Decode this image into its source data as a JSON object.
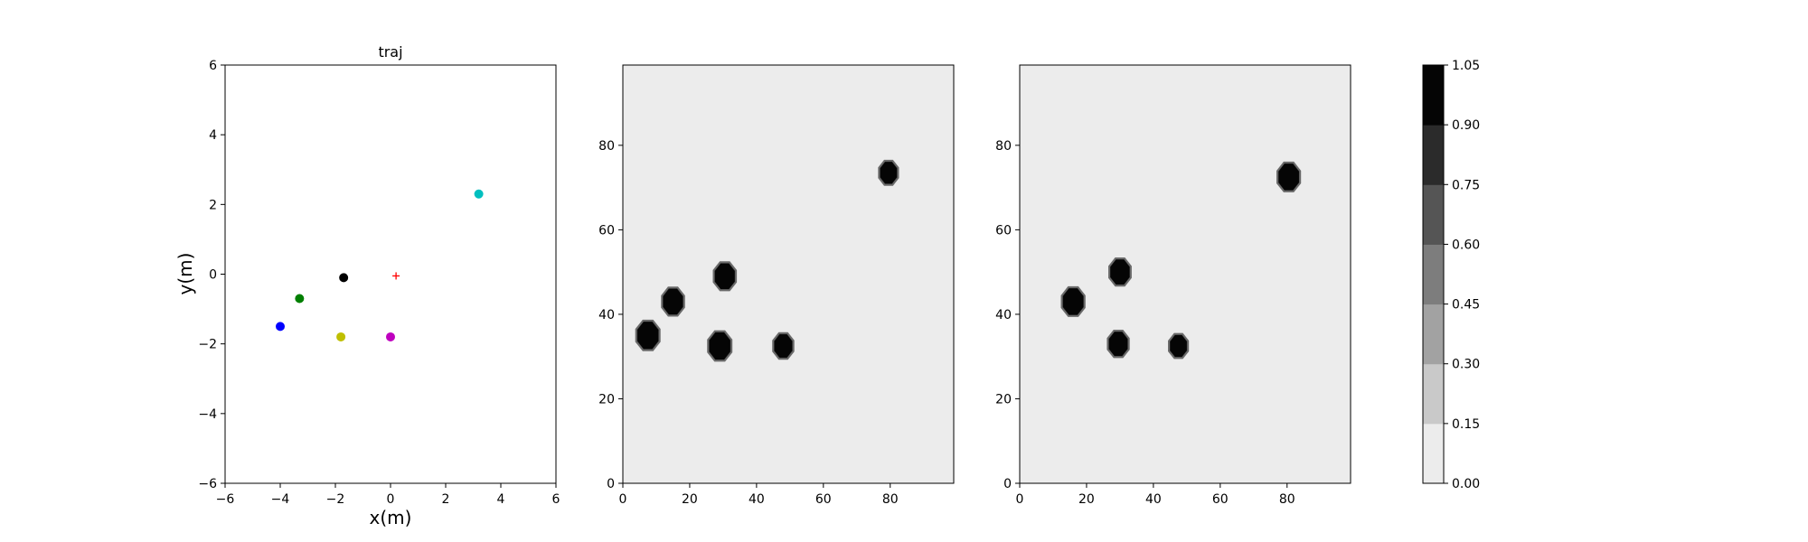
{
  "chart_data": [
    {
      "type": "scatter",
      "title": "traj",
      "xlabel": "x(m)",
      "ylabel": "y(m)",
      "xlim": [
        -6,
        6
      ],
      "ylim": [
        -6,
        6
      ],
      "xticks": [
        "−6",
        "−4",
        "−2",
        "0",
        "2",
        "4",
        "6"
      ],
      "yticks": [
        "−6",
        "−4",
        "−2",
        "0",
        "2",
        "4",
        "6"
      ],
      "grid": false,
      "points": [
        {
          "x": -4.0,
          "y": -1.5,
          "color": "#0000ff",
          "marker": "circle"
        },
        {
          "x": -3.3,
          "y": -0.7,
          "color": "#007f00",
          "marker": "circle"
        },
        {
          "x": -1.7,
          "y": -0.1,
          "color": "#000000",
          "marker": "circle"
        },
        {
          "x": -1.8,
          "y": -1.8,
          "color": "#bfbf00",
          "marker": "circle"
        },
        {
          "x": 0.0,
          "y": -1.8,
          "color": "#bf00bf",
          "marker": "circle"
        },
        {
          "x": 3.2,
          "y": 2.3,
          "color": "#00bfbf",
          "marker": "circle"
        },
        {
          "x": 0.2,
          "y": -0.05,
          "color": "#ff0000",
          "marker": "plus"
        }
      ]
    },
    {
      "type": "heatmap",
      "xlim": [
        0,
        99
      ],
      "ylim": [
        0,
        99
      ],
      "xticks": [
        "0",
        "20",
        "40",
        "60",
        "80"
      ],
      "yticks": [
        "0",
        "20",
        "40",
        "60",
        "80"
      ],
      "background_value": 0.0,
      "blobs": [
        {
          "x": 7.5,
          "y": 35,
          "r": 3.8,
          "value": 1.0
        },
        {
          "x": 15,
          "y": 43,
          "r": 3.6,
          "value": 1.0
        },
        {
          "x": 30.5,
          "y": 49,
          "r": 3.6,
          "value": 1.0
        },
        {
          "x": 29,
          "y": 32.5,
          "r": 3.8,
          "value": 1.0
        },
        {
          "x": 48,
          "y": 32.5,
          "r": 3.3,
          "value": 1.0
        },
        {
          "x": 79.5,
          "y": 73.5,
          "r": 3.1,
          "value": 1.0
        }
      ]
    },
    {
      "type": "heatmap",
      "xlim": [
        0,
        99
      ],
      "ylim": [
        0,
        99
      ],
      "xticks": [
        "0",
        "20",
        "40",
        "60",
        "80"
      ],
      "yticks": [
        "0",
        "20",
        "40",
        "60",
        "80"
      ],
      "background_value": 0.0,
      "blobs": [
        {
          "x": 16,
          "y": 43,
          "r": 3.7,
          "value": 1.0
        },
        {
          "x": 30,
          "y": 50,
          "r": 3.5,
          "value": 1.0
        },
        {
          "x": 29.5,
          "y": 33,
          "r": 3.4,
          "value": 1.0
        },
        {
          "x": 47.5,
          "y": 32.5,
          "r": 3.1,
          "value": 1.0
        },
        {
          "x": 80.5,
          "y": 72.5,
          "r": 3.7,
          "value": 1.0
        }
      ]
    },
    {
      "type": "colorbar",
      "range": [
        0.0,
        1.05
      ],
      "ticks": [
        "0.00",
        "0.15",
        "0.30",
        "0.45",
        "0.60",
        "0.75",
        "0.90",
        "1.05"
      ],
      "levels": [
        "#ececec",
        "#c9c9c9",
        "#a2a2a2",
        "#7d7d7d",
        "#555555",
        "#2b2b2b",
        "#050505"
      ]
    }
  ]
}
